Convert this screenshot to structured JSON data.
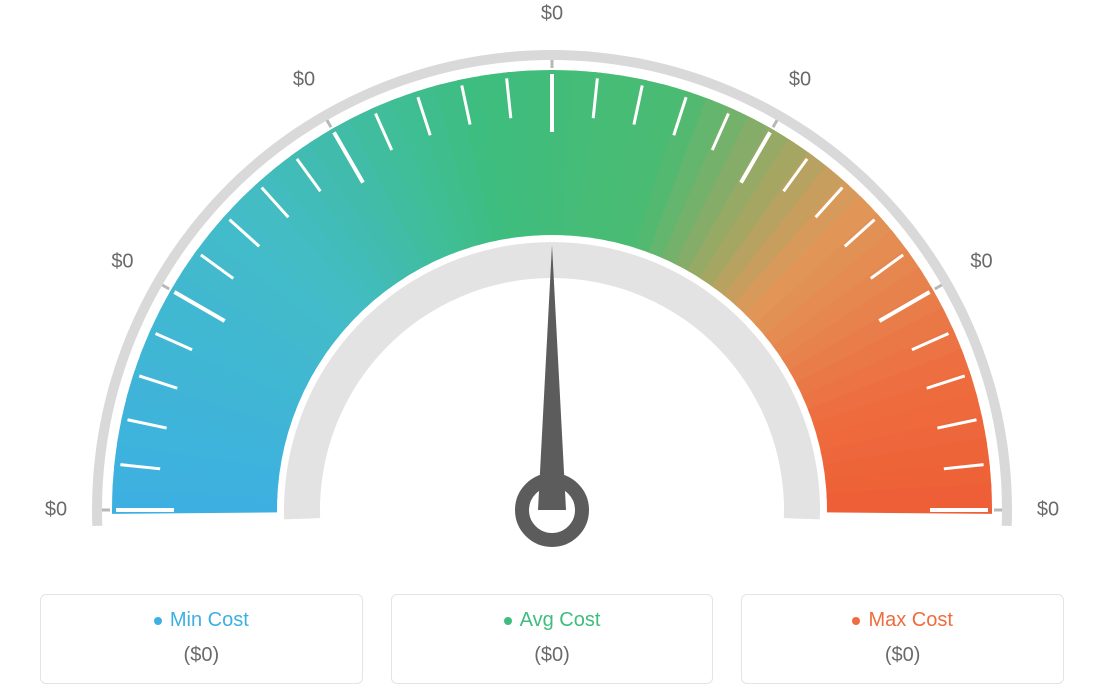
{
  "gauge": {
    "type": "gauge",
    "angle_start_deg": 180,
    "angle_end_deg": 0,
    "needle_angle_deg": 90,
    "tick_label_color": "#6a6a6a",
    "tick_label_fontsize": 20,
    "outer_ring_color": "#d9d9d9",
    "inner_ring_color": "#e3e3e3",
    "needle_fill": "#5c5c5c",
    "background_color": "#ffffff",
    "gradient_stops": [
      {
        "pct": 0,
        "color": "#3db0e2"
      },
      {
        "pct": 25,
        "color": "#43bcc7"
      },
      {
        "pct": 45,
        "color": "#3ebd7e"
      },
      {
        "pct": 60,
        "color": "#4bbb72"
      },
      {
        "pct": 75,
        "color": "#e0985a"
      },
      {
        "pct": 90,
        "color": "#ee6c3e"
      },
      {
        "pct": 100,
        "color": "#ee5e36"
      }
    ],
    "major_ticks": [
      {
        "angle_deg": 180,
        "label": "$0"
      },
      {
        "angle_deg": 150,
        "label": "$0"
      },
      {
        "angle_deg": 120,
        "label": "$0"
      },
      {
        "angle_deg": 90,
        "label": "$0"
      },
      {
        "angle_deg": 60,
        "label": "$0"
      },
      {
        "angle_deg": 30,
        "label": "$0"
      },
      {
        "angle_deg": 0,
        "label": "$0"
      }
    ],
    "major_tick_color": "#b8b8b8",
    "minor_tick_color": "#ffffff",
    "minor_ticks_per_segment": 4
  },
  "legend": {
    "card_border_color": "#e4e4e4",
    "card_background": "#ffffff",
    "value_color": "#6a6a6a",
    "items": [
      {
        "dot_color": "#3db0e2",
        "label": "Min Cost",
        "label_color": "#3db0e2",
        "value": "($0)"
      },
      {
        "dot_color": "#3ebd7e",
        "label": "Avg Cost",
        "label_color": "#3ebd7e",
        "value": "($0)"
      },
      {
        "dot_color": "#ee6c3e",
        "label": "Max Cost",
        "label_color": "#ee6c3e",
        "value": "($0)"
      }
    ]
  }
}
